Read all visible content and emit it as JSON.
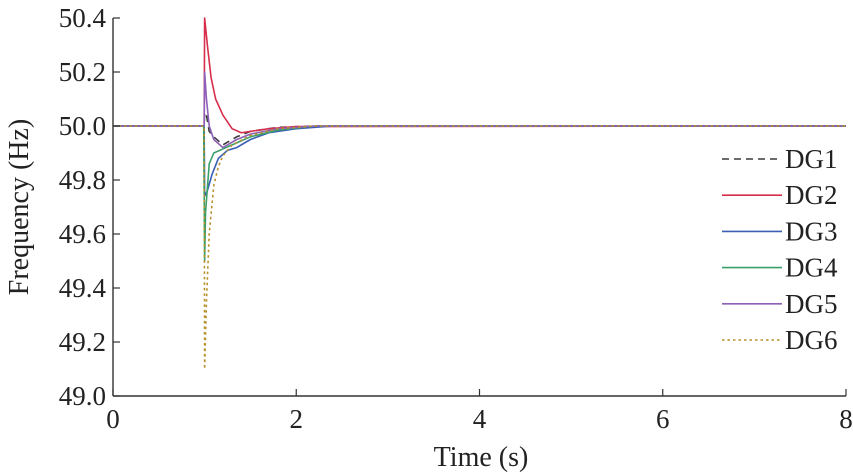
{
  "chart_data": {
    "type": "line",
    "title": "",
    "xlabel": "Time (s)",
    "ylabel": "Frequency (Hz)",
    "xlim": [
      0,
      8
    ],
    "ylim": [
      49.0,
      50.4
    ],
    "xticks": [
      0,
      2,
      4,
      6,
      8
    ],
    "yticks": [
      49.0,
      49.2,
      49.4,
      49.6,
      49.8,
      50.0,
      50.2,
      50.4
    ],
    "ytick_labels": [
      "49.0",
      "49.2",
      "49.4",
      "49.6",
      "49.8",
      "50.0",
      "50.2",
      "50.4"
    ],
    "grid": false,
    "legend_position": "right",
    "series": [
      {
        "name": "DG1",
        "color": "#3a3a3a",
        "dash": "dashed",
        "x": [
          0,
          0.98,
          0.995,
          1.0,
          1.02,
          1.05,
          1.1,
          1.2,
          1.35,
          1.5,
          1.8,
          2.2,
          2.6,
          8
        ],
        "y": [
          50.0,
          50.0,
          50.0,
          50.05,
          50.04,
          49.98,
          49.96,
          49.93,
          49.96,
          49.98,
          49.995,
          50.0,
          50.0,
          50.0
        ]
      },
      {
        "name": "DG2",
        "color": "#d62e4a",
        "dash": "solid",
        "x": [
          0,
          0.98,
          0.995,
          1.0,
          1.03,
          1.07,
          1.12,
          1.2,
          1.3,
          1.4,
          1.5,
          1.7,
          2.0,
          8
        ],
        "y": [
          50.0,
          50.0,
          50.0,
          50.4,
          50.3,
          50.18,
          50.1,
          50.04,
          49.99,
          49.975,
          49.98,
          49.99,
          49.998,
          50.0
        ]
      },
      {
        "name": "DG3",
        "color": "#3b5fb5",
        "dash": "solid",
        "x": [
          0,
          0.98,
          0.995,
          1.0,
          1.03,
          1.08,
          1.15,
          1.25,
          1.35,
          1.5,
          1.7,
          2.0,
          2.4,
          8
        ],
        "y": [
          50.0,
          50.0,
          50.0,
          49.74,
          49.76,
          49.82,
          49.88,
          49.91,
          49.92,
          49.95,
          49.975,
          49.99,
          50.0,
          50.0
        ]
      },
      {
        "name": "DG4",
        "color": "#3aa06a",
        "dash": "solid",
        "x": [
          0,
          0.98,
          0.99,
          1.0,
          1.01,
          1.05,
          1.1,
          1.2,
          1.3,
          1.5,
          1.8,
          2.2,
          8
        ],
        "y": [
          50.0,
          50.0,
          50.0,
          49.5,
          49.68,
          49.86,
          49.9,
          49.915,
          49.93,
          49.96,
          49.985,
          50.0,
          50.0
        ]
      },
      {
        "name": "DG5",
        "color": "#8e5fb8",
        "dash": "solid",
        "x": [
          0,
          0.98,
          0.995,
          1.0,
          1.02,
          1.05,
          1.1,
          1.2,
          1.35,
          1.5,
          1.8,
          2.2,
          8
        ],
        "y": [
          50.0,
          50.0,
          50.0,
          50.2,
          50.1,
          50.0,
          49.95,
          49.92,
          49.95,
          49.97,
          49.99,
          50.0,
          50.0
        ]
      },
      {
        "name": "DG6",
        "color": "#b8902a",
        "dash": "dotted",
        "x": [
          0,
          0.98,
          0.995,
          1.0,
          1.02,
          1.05,
          1.1,
          1.15,
          1.2,
          1.3,
          1.5,
          1.8,
          2.2,
          8
        ],
        "y": [
          50.0,
          50.0,
          50.0,
          49.1,
          49.35,
          49.6,
          49.78,
          49.85,
          49.89,
          49.93,
          49.965,
          49.99,
          50.0,
          50.0
        ]
      }
    ]
  }
}
